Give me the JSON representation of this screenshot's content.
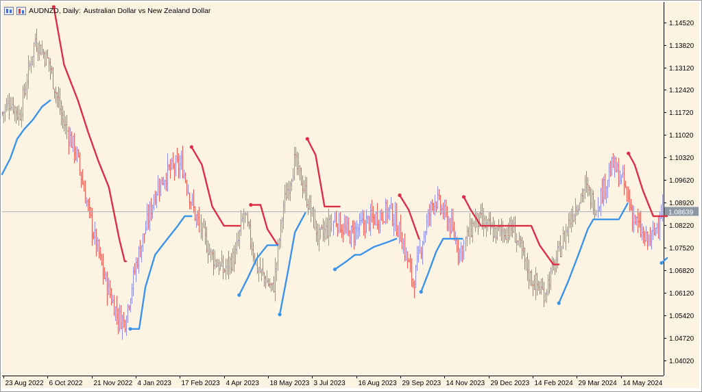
{
  "header": {
    "symbol": "AUDNZD, Daily:",
    "description": "Australian Dollar vs New Zealand Dollar"
  },
  "price_label": "1.08639",
  "colors": {
    "background": "#fdf3e3",
    "bull_bar": "#8a8ce8",
    "bear_bar": "#f05a4f",
    "upper_band": "#dc2d46",
    "lower_band": "#3a93ea",
    "price_line": "#a9b3bd",
    "price_tag": "#8c97a3"
  },
  "chart_data": {
    "type": "ohlc",
    "y_ticks": [
      "1.14520",
      "1.13820",
      "1.13120",
      "1.12420",
      "1.11720",
      "1.11020",
      "1.10320",
      "1.09620",
      "1.08920",
      "1.08220",
      "1.07520",
      "1.06820",
      "1.06120",
      "1.05420",
      "1.04720",
      "1.04020"
    ],
    "x_ticks": [
      "23 Aug 2022",
      "6 Oct 2022",
      "21 Nov 2022",
      "4 Jan 2023",
      "17 Feb 2023",
      "4 Apr 2023",
      "18 May 2023",
      "3 Jul 2023",
      "16 Aug 2023",
      "29 Sep 2023",
      "14 Nov 2023",
      "29 Dec 2023",
      "14 Feb 2024",
      "29 Mar 2024",
      "14 May 2024"
    ],
    "ylim": [
      1.0355,
      1.1515
    ],
    "current_price": 1.08639,
    "bar_count": 480,
    "price_path": [
      [
        0,
        1.117
      ],
      [
        12,
        1.121
      ],
      [
        25,
        1.116
      ],
      [
        48,
        1.14
      ],
      [
        68,
        1.133
      ],
      [
        88,
        1.115
      ],
      [
        108,
        1.104
      ],
      [
        130,
        1.082
      ],
      [
        150,
        1.065
      ],
      [
        168,
        1.054
      ],
      [
        178,
        1.052
      ],
      [
        196,
        1.071
      ],
      [
        224,
        1.093
      ],
      [
        242,
        1.099
      ],
      [
        262,
        1.101
      ],
      [
        282,
        1.085
      ],
      [
        304,
        1.073
      ],
      [
        322,
        1.068
      ],
      [
        340,
        1.073
      ],
      [
        352,
        1.086
      ],
      [
        372,
        1.069
      ],
      [
        395,
        1.062
      ],
      [
        410,
        1.088
      ],
      [
        426,
        1.102
      ],
      [
        440,
        1.094
      ],
      [
        462,
        1.078
      ],
      [
        486,
        1.084
      ],
      [
        506,
        1.079
      ],
      [
        530,
        1.083
      ],
      [
        565,
        1.087
      ],
      [
        580,
        1.08
      ],
      [
        600,
        1.064
      ],
      [
        612,
        1.077
      ],
      [
        630,
        1.091
      ],
      [
        652,
        1.083
      ],
      [
        668,
        1.074
      ],
      [
        690,
        1.084
      ],
      [
        718,
        1.08
      ],
      [
        745,
        1.081
      ],
      [
        770,
        1.066
      ],
      [
        790,
        1.061
      ],
      [
        806,
        1.07
      ],
      [
        830,
        1.085
      ],
      [
        850,
        1.094
      ],
      [
        866,
        1.088
      ],
      [
        890,
        1.101
      ],
      [
        906,
        1.095
      ],
      [
        920,
        1.085
      ],
      [
        938,
        1.077
      ],
      [
        950,
        1.079
      ],
      [
        962,
        1.088
      ]
    ],
    "upper_band": [
      {
        "x": [
          75,
          90,
          110,
          125,
          140,
          155,
          170,
          178,
          180
        ],
        "y": [
          1.15,
          1.132,
          1.121,
          1.111,
          1.102,
          1.094,
          1.078,
          1.071,
          1.071
        ],
        "dot": true
      },
      {
        "x": [
          275,
          290,
          305,
          322,
          345
        ],
        "y": [
          1.1065,
          1.101,
          1.088,
          1.082,
          1.082
        ],
        "dot": true
      },
      {
        "x": [
          361,
          375,
          385,
          400
        ],
        "y": [
          1.0885,
          1.0885,
          1.081,
          1.076
        ],
        "dot": true
      },
      {
        "x": [
          443,
          455,
          468,
          490
        ],
        "y": [
          1.109,
          1.104,
          1.088,
          1.088
        ],
        "dot": true
      },
      {
        "x": [
          577,
          590,
          605
        ],
        "y": [
          1.0915,
          1.087,
          1.078
        ],
        "dot": true
      },
      {
        "x": [
          670,
          680,
          695,
          725,
          768,
          780,
          800,
          808
        ],
        "y": [
          1.091,
          1.087,
          1.082,
          1.082,
          1.082,
          1.076,
          1.07,
          1.07
        ],
        "dot": true
      },
      {
        "x": [
          909,
          918,
          930,
          945,
          965
        ],
        "y": [
          1.1045,
          1.101,
          1.093,
          1.085,
          1.085
        ],
        "dot": true
      }
    ],
    "lower_band": [
      {
        "x": [
          0,
          12,
          22,
          32,
          45,
          58,
          70
        ],
        "y": [
          1.098,
          1.103,
          1.109,
          1.112,
          1.115,
          1.119,
          1.121
        ],
        "dot": false
      },
      {
        "x": [
          186,
          199,
          208,
          222,
          240,
          255,
          265,
          275
        ],
        "y": [
          1.05,
          1.05,
          1.063,
          1.073,
          1.078,
          1.082,
          1.085,
          1.085
        ],
        "dot": true
      },
      {
        "x": [
          344,
          357,
          370,
          385,
          400
        ],
        "y": [
          1.0605,
          1.066,
          1.072,
          1.076,
          1.076
        ],
        "dot": true
      },
      {
        "x": [
          403,
          415,
          425,
          440
        ],
        "y": [
          1.0545,
          1.068,
          1.08,
          1.086
        ],
        "dot": true
      },
      {
        "x": [
          483,
          500,
          512,
          520,
          540,
          560,
          572
        ],
        "y": [
          1.0685,
          1.071,
          1.073,
          1.073,
          1.0755,
          1.077,
          1.078
        ],
        "dot": true
      },
      {
        "x": [
          608,
          618,
          630,
          640,
          668
        ],
        "y": [
          1.0615,
          1.067,
          1.074,
          1.078,
          1.078
        ],
        "dot": true
      },
      {
        "x": [
          808,
          822,
          838,
          850,
          858,
          895,
          908
        ],
        "y": [
          1.058,
          1.065,
          1.074,
          1.081,
          1.084,
          1.084,
          1.089
        ],
        "dot": true
      },
      {
        "x": [
          957,
          965
        ],
        "y": [
          1.0705,
          1.072
        ],
        "dot": true
      }
    ]
  }
}
